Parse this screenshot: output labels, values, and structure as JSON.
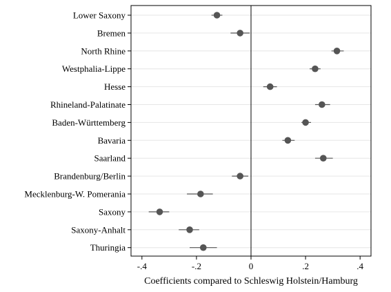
{
  "chart_data": {
    "type": "scatter",
    "orientation": "horizontal",
    "categories": [
      "Lower Saxony",
      "Bremen",
      "North Rhine",
      "Westphalia-Lippe",
      "Hesse",
      "Rhineland-Palatinate",
      "Baden-Württemberg",
      "Bavaria",
      "Saarland",
      "Brandenburg/Berlin",
      "Mecklenburg-W. Pomerania",
      "Saxony",
      "Saxony-Anhalt",
      "Thuringia"
    ],
    "series": [
      {
        "values": [
          -0.125,
          -0.04,
          0.315,
          0.235,
          0.07,
          0.26,
          0.2,
          0.135,
          0.265,
          -0.04,
          -0.185,
          -0.335,
          -0.225,
          -0.175
        ],
        "ci_low": [
          -0.145,
          -0.075,
          0.295,
          0.215,
          0.045,
          0.235,
          0.185,
          0.115,
          0.235,
          -0.07,
          -0.235,
          -0.375,
          -0.265,
          -0.225
        ],
        "ci_high": [
          -0.105,
          -0.005,
          0.34,
          0.255,
          0.095,
          0.29,
          0.22,
          0.16,
          0.3,
          -0.01,
          -0.14,
          -0.3,
          -0.19,
          -0.125
        ]
      }
    ],
    "xlabel": "Coefficients compared to Schleswig Holstein/Hamburg",
    "ylabel": "",
    "xlim": [
      -0.44,
      0.44
    ],
    "xticks": [
      -0.4,
      -0.2,
      0,
      0.2,
      0.4
    ],
    "xtick_labels": [
      "-.4",
      "-.2",
      "0",
      ".2",
      ".4"
    ],
    "reference_line": 0,
    "grid": true,
    "marker_color": "#555555",
    "ci_color": "#555555",
    "grid_color": "#e6e6e6"
  }
}
